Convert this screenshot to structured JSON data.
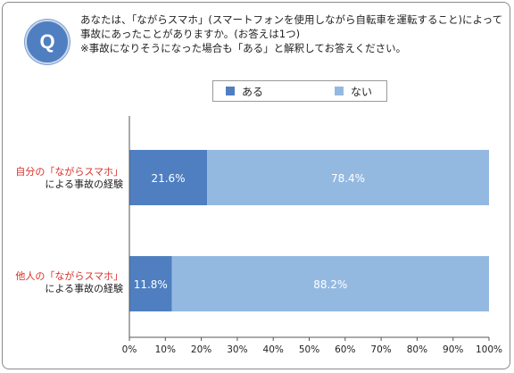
{
  "question": {
    "badge": "Q",
    "line1": "あなたは、「ながらスマホ」(スマートフォンを使用しながら自転車を運転すること)によって",
    "line2": "事故にあったことがありますか。(お答えは1つ)",
    "line3": "※事故になりそうになった場合も「ある」と解釈してお答えください。"
  },
  "legend": {
    "items": [
      {
        "label": "ある",
        "color": "#4f7fc1"
      },
      {
        "label": "ない",
        "color": "#94b9e1"
      }
    ]
  },
  "rows": [
    {
      "label_line1_prefix": "自分の",
      "label_line1_red": "「ながらスマホ」",
      "label_line2": "による事故の経験"
    },
    {
      "label_line1_prefix": "他人の",
      "label_line1_red": "「ながらスマホ」",
      "label_line2": "による事故の経験"
    }
  ],
  "chart_data": {
    "type": "bar",
    "orientation": "horizontal",
    "stacked": true,
    "categories": [
      "自分の「ながらスマホ」による事故の経験",
      "他人の「ながらスマホ」による事故の経験"
    ],
    "series": [
      {
        "name": "ある",
        "values": [
          21.6,
          11.8
        ],
        "labels": [
          "21.6%",
          "11.8%"
        ],
        "color": "#4f7fc1"
      },
      {
        "name": "ない",
        "values": [
          78.4,
          88.2
        ],
        "labels": [
          "78.4%",
          "88.2%"
        ],
        "color": "#94b9e1"
      }
    ],
    "xlim": [
      0,
      100
    ],
    "xticks": [
      "0%",
      "10%",
      "20%",
      "30%",
      "40%",
      "50%",
      "60%",
      "70%",
      "80%",
      "90%",
      "100%"
    ],
    "legend_position": "top",
    "grid": false
  }
}
